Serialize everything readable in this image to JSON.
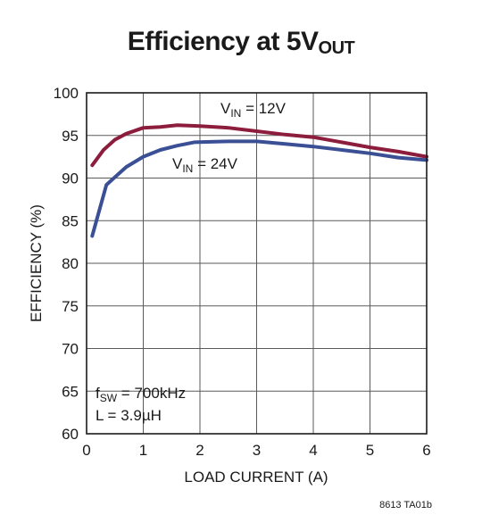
{
  "chart_data": {
    "type": "line",
    "title": "Efficiency at 5V",
    "title_subscript": "OUT",
    "xlabel": "LOAD CURRENT (A)",
    "ylabel": "EFFICIENCY (%)",
    "xlim": [
      0,
      6
    ],
    "ylim": [
      60,
      100
    ],
    "xticks": [
      0,
      1,
      2,
      3,
      4,
      5,
      6
    ],
    "yticks": [
      60,
      65,
      70,
      75,
      80,
      85,
      90,
      95,
      100
    ],
    "grid": true,
    "series": [
      {
        "name": "VIN = 12V",
        "label_main": "V",
        "label_sub": "IN",
        "label_rest": " = 12V",
        "color": "#8c1d3c",
        "x": [
          0.1,
          0.3,
          0.5,
          0.7,
          1.0,
          1.3,
          1.6,
          2.0,
          2.5,
          3.0,
          3.5,
          4.0,
          4.5,
          5.0,
          5.5,
          6.0
        ],
        "y": [
          91.5,
          93.3,
          94.5,
          95.2,
          95.9,
          96.0,
          96.2,
          96.1,
          95.9,
          95.5,
          95.1,
          94.8,
          94.2,
          93.6,
          93.1,
          92.5
        ]
      },
      {
        "name": "VIN = 24V",
        "label_main": "V",
        "label_sub": "IN",
        "label_rest": " = 24V",
        "color": "#3a4f94",
        "x": [
          0.1,
          0.35,
          0.7,
          1.0,
          1.3,
          1.6,
          1.9,
          2.5,
          3.0,
          3.5,
          4.0,
          4.5,
          5.0,
          5.5,
          6.0
        ],
        "y": [
          83.2,
          89.2,
          91.3,
          92.5,
          93.3,
          93.8,
          94.2,
          94.3,
          94.3,
          94.0,
          93.7,
          93.3,
          92.9,
          92.4,
          92.1
        ]
      }
    ],
    "annotation": {
      "line1_main": "f",
      "line1_sub": "SW",
      "line1_rest": " = 700kHz",
      "line2": "L = 3.9µH"
    },
    "figure_id": "8613 TA01b"
  }
}
